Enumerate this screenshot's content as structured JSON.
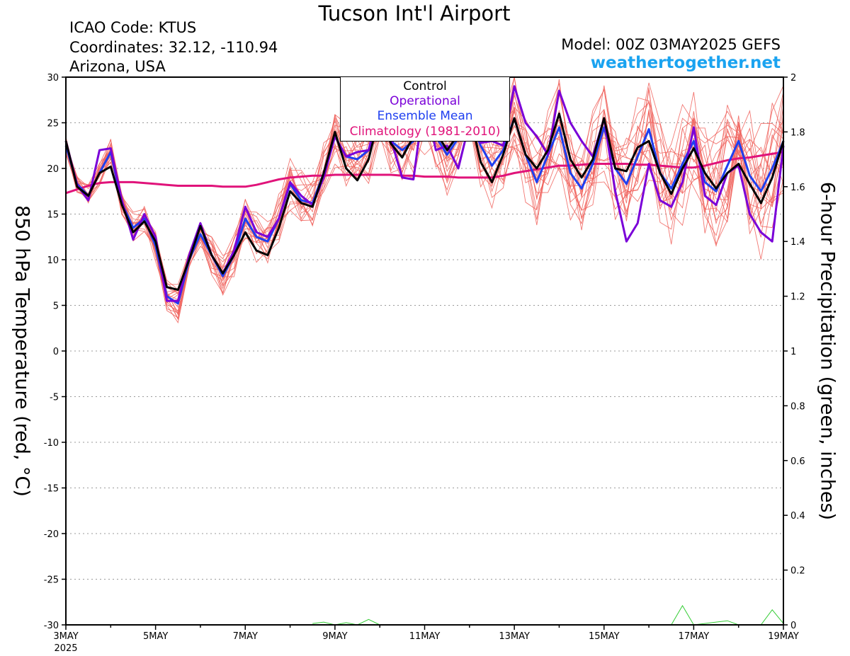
{
  "header": {
    "title": "Tucson Int'l Airport",
    "icao": "ICAO Code: KTUS",
    "coordinates": "Coordinates: 32.12, -110.94",
    "location": "Arizona, USA",
    "model": "Model: 00Z 03MAY2025 GEFS",
    "site": "weathertogether.net"
  },
  "chart_data": {
    "type": "line",
    "y_left_label": "850 hPa Temperature (red, °C)",
    "y_right_label": "6-hour Precipitation (green, inches)",
    "y_left_range": [
      -30,
      30
    ],
    "y_left_ticks": [
      "30",
      "25",
      "20",
      "15",
      "10",
      "5",
      "0",
      "-5",
      "-10",
      "-15",
      "-20",
      "-25",
      "-30"
    ],
    "y_right_range": [
      0,
      2
    ],
    "y_right_ticks": [
      "2",
      "1.8",
      "1.6",
      "1.4",
      "1.2",
      "1",
      "0.8",
      "0.6",
      "0.4",
      "0.2",
      "0"
    ],
    "x_ticks": [
      "3MAY",
      "5MAY",
      "7MAY",
      "9MAY",
      "11MAY",
      "13MAY",
      "15MAY",
      "17MAY",
      "19MAY"
    ],
    "x_year": "2025",
    "grid": true,
    "legend": {
      "position": "top-center",
      "items": [
        {
          "name": "Control",
          "color": "#000000"
        },
        {
          "name": "Operational",
          "color": "#7a00d8"
        },
        {
          "name": "Ensemble Mean",
          "color": "#1e3ff0"
        },
        {
          "name": "Climatology (1981-2010)",
          "color": "#e0137a"
        }
      ]
    },
    "x_days": [
      0,
      0.25,
      0.5,
      0.75,
      1,
      1.25,
      1.5,
      1.75,
      2,
      2.25,
      2.5,
      2.75,
      3,
      3.25,
      3.5,
      3.75,
      4,
      4.25,
      4.5,
      4.75,
      5,
      5.25,
      5.5,
      5.75,
      6,
      6.25,
      6.5,
      6.75,
      7,
      7.25,
      7.5,
      7.75,
      8,
      8.25,
      8.5,
      8.75,
      9,
      9.25,
      9.5,
      9.75,
      10,
      10.25,
      10.5,
      10.75,
      11,
      11.25,
      11.5,
      11.75,
      12,
      12.25,
      12.5,
      12.75,
      13,
      13.25,
      13.5,
      13.75,
      14,
      14.25,
      14.5,
      14.75,
      15,
      15.25,
      15.5,
      15.75,
      16
    ],
    "series": [
      {
        "name": "Control",
        "color": "#000000",
        "values": [
          23,
          18,
          17,
          19.5,
          20.2,
          16,
          13,
          14.2,
          12,
          7,
          6.7,
          10,
          13.7,
          10.5,
          8.5,
          10.5,
          13,
          11,
          10.5,
          13.5,
          17.5,
          16.2,
          15.8,
          19.5,
          24,
          20,
          18.7,
          21,
          26,
          22.7,
          21.2,
          23.5,
          26,
          24,
          22,
          23.7,
          26,
          20.7,
          18.5,
          21.5,
          25.5,
          21.5,
          20,
          22,
          26,
          21,
          19,
          21,
          25.5,
          20,
          19.7,
          22.3,
          23,
          19.5,
          17.2,
          20,
          22.2,
          19.5,
          17.8,
          19.5,
          20.5,
          18.3,
          16.2,
          19,
          23
        ]
      },
      {
        "name": "Operational",
        "color": "#7a00d8",
        "values": [
          23,
          18.2,
          16.5,
          22,
          22.2,
          16.5,
          12.2,
          15,
          12.5,
          5.5,
          5.5,
          10.5,
          14,
          10.5,
          8.5,
          11,
          15.8,
          13,
          12.5,
          14.5,
          18.5,
          17,
          16,
          19,
          23.5,
          21.3,
          21.8,
          22,
          27,
          23.2,
          19,
          18.8,
          28,
          22,
          22.5,
          20,
          25,
          22.8,
          23,
          22.5,
          29,
          25,
          23.5,
          21.5,
          28.5,
          25,
          23,
          21.3,
          25.5,
          17.5,
          12,
          14,
          20.5,
          16.5,
          15.8,
          18.5,
          24.5,
          17,
          16,
          19.5,
          20.3,
          15,
          13,
          12,
          22.5
        ]
      },
      {
        "name": "Ensemble Mean",
        "color": "#1e3ff0",
        "values": [
          22.5,
          18.3,
          17,
          19.5,
          21.8,
          16.2,
          13.5,
          14.5,
          11.5,
          6,
          5.2,
          10,
          12.8,
          10.5,
          8.2,
          10.5,
          14.5,
          12.5,
          12,
          14.5,
          18.3,
          16.5,
          16.2,
          19.5,
          23.5,
          21.3,
          21,
          22,
          26,
          23,
          22,
          23,
          25.5,
          23.5,
          21.5,
          23.3,
          25.5,
          22.5,
          20.3,
          22,
          25.5,
          21.5,
          18.5,
          21.5,
          24.5,
          19.5,
          17.8,
          20.5,
          24.5,
          20,
          18.3,
          21.3,
          24.3,
          19.5,
          17.8,
          20.5,
          23,
          18.5,
          17.5,
          20.3,
          23,
          19.2,
          17.5,
          20,
          23
        ]
      },
      {
        "name": "Climatology (1981-2010)",
        "color": "#e0137a",
        "values": [
          17.3,
          17.7,
          18.1,
          18.4,
          18.5,
          18.5,
          18.5,
          18.4,
          18.3,
          18.2,
          18.1,
          18.1,
          18.1,
          18.1,
          18.0,
          18.0,
          18.0,
          18.2,
          18.5,
          18.8,
          19.0,
          19.1,
          19.2,
          19.2,
          19.3,
          19.3,
          19.3,
          19.3,
          19.3,
          19.3,
          19.2,
          19.2,
          19.1,
          19.1,
          19.1,
          19.0,
          19.0,
          19.0,
          19.0,
          19.2,
          19.5,
          19.7,
          19.9,
          20.1,
          20.3,
          20.3,
          20.4,
          20.5,
          20.5,
          20.5,
          20.5,
          20.4,
          20.4,
          20.3,
          20.2,
          20.1,
          20.1,
          20.3,
          20.6,
          20.9,
          21.1,
          21.2,
          21.4,
          21.6,
          21.8
        ]
      }
    ],
    "precipitation": {
      "color": "#33cc33",
      "points": [
        [
          5.5,
          0.005
        ],
        [
          5.75,
          0.01
        ],
        [
          6,
          0.0
        ],
        [
          6.25,
          0.008
        ],
        [
          6.5,
          0.0
        ],
        [
          6.75,
          0.02
        ],
        [
          7,
          0.0
        ],
        [
          13.5,
          0.0
        ],
        [
          13.75,
          0.07
        ],
        [
          14,
          0.0
        ],
        [
          14.75,
          0.015
        ],
        [
          15,
          0.0
        ],
        [
          15.5,
          0.0
        ],
        [
          15.75,
          0.055
        ],
        [
          16,
          0.005
        ]
      ]
    }
  }
}
